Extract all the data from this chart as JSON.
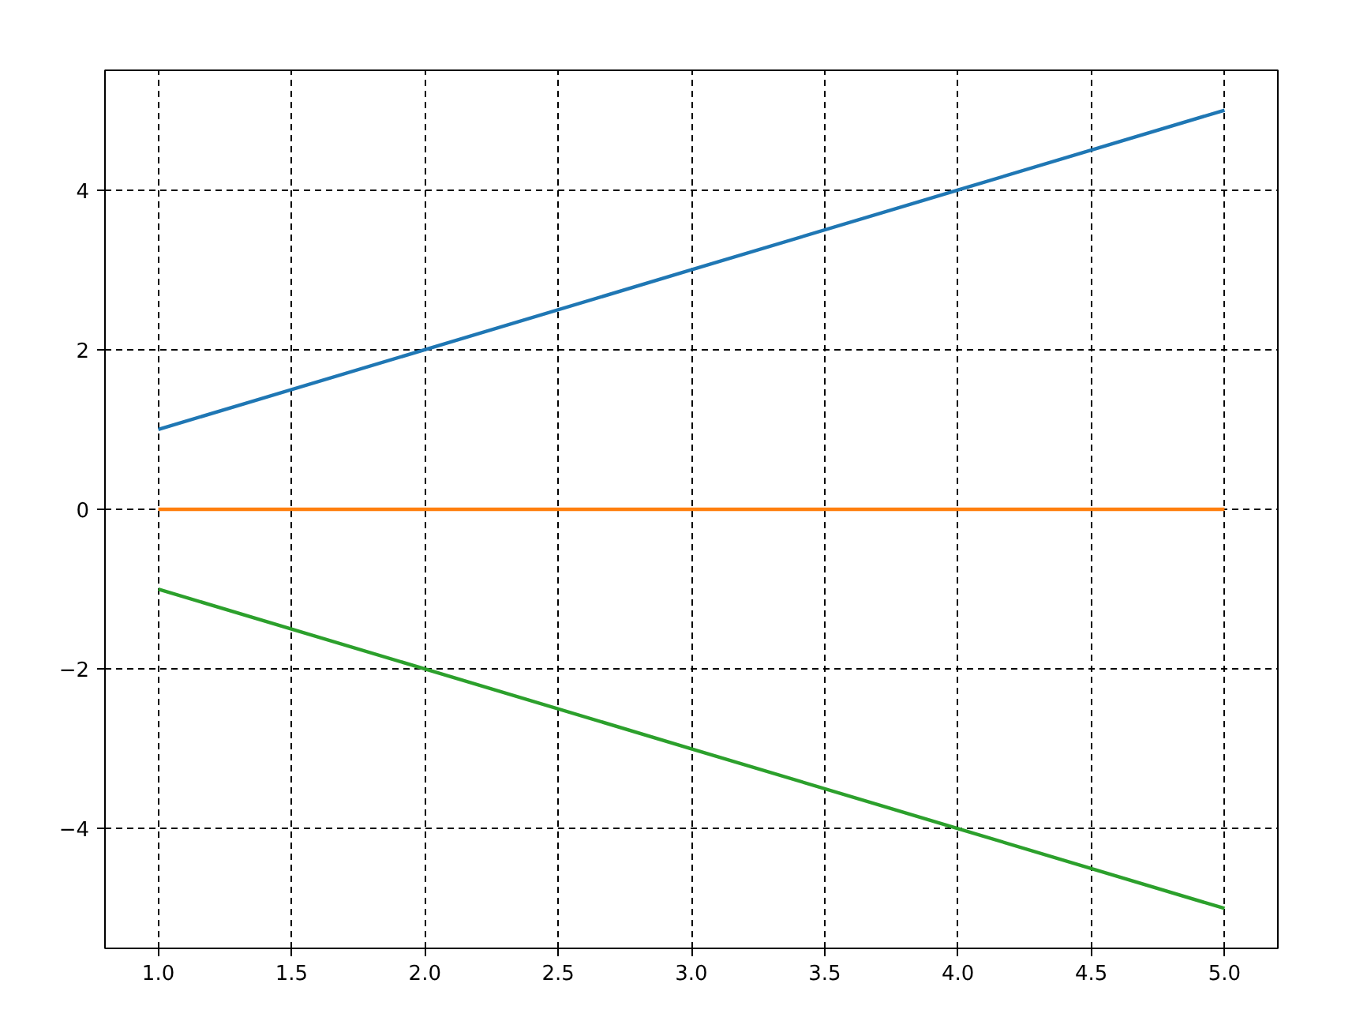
{
  "chart_data": {
    "type": "line",
    "x": [
      1,
      2,
      3,
      4,
      5
    ],
    "series": [
      {
        "color": "#1f77b4",
        "values": [
          1,
          2,
          3,
          4,
          5
        ]
      },
      {
        "color": "#ff7f0e",
        "values": [
          0,
          0,
          0,
          0,
          0
        ]
      },
      {
        "color": "#2ca02c",
        "values": [
          -1,
          -2,
          -3,
          -4,
          -5
        ]
      }
    ],
    "xlim": [
      0.8,
      5.2
    ],
    "ylim": [
      -5.5,
      5.5
    ],
    "xticks": [
      {
        "value": 1,
        "label": "1.0"
      },
      {
        "value": 1.5,
        "label": "1.5"
      },
      {
        "value": 2,
        "label": "2.0"
      },
      {
        "value": 2.5,
        "label": "2.5"
      },
      {
        "value": 3,
        "label": "3.0"
      },
      {
        "value": 3.5,
        "label": "3.5"
      },
      {
        "value": 4,
        "label": "4.0"
      },
      {
        "value": 4.5,
        "label": "4.5"
      },
      {
        "value": 5,
        "label": "5.0"
      }
    ],
    "yticks": [
      {
        "value": -4,
        "label": "−4"
      },
      {
        "value": -2,
        "label": "−2"
      },
      0,
      2,
      4
    ],
    "grid": true,
    "line_style": "solid"
  }
}
